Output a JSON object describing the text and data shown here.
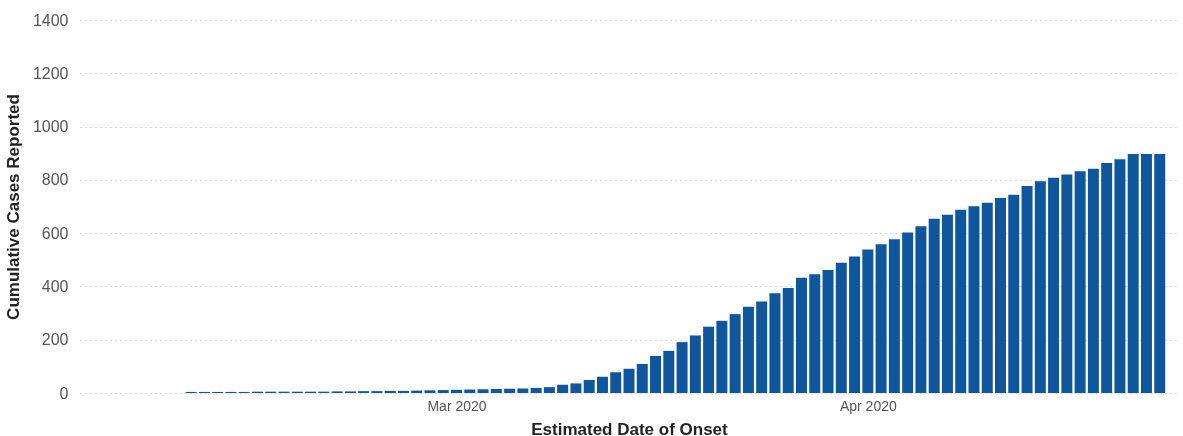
{
  "chart_data": {
    "type": "bar",
    "xlabel": "Estimated Date of Onset",
    "ylabel": "Cumulative Cases Reported",
    "x": [
      "2020-02-10",
      "2020-02-11",
      "2020-02-12",
      "2020-02-13",
      "2020-02-14",
      "2020-02-15",
      "2020-02-16",
      "2020-02-17",
      "2020-02-18",
      "2020-02-19",
      "2020-02-20",
      "2020-02-21",
      "2020-02-22",
      "2020-02-23",
      "2020-02-24",
      "2020-02-25",
      "2020-02-26",
      "2020-02-27",
      "2020-02-28",
      "2020-02-29",
      "2020-03-01",
      "2020-03-02",
      "2020-03-03",
      "2020-03-04",
      "2020-03-05",
      "2020-03-06",
      "2020-03-07",
      "2020-03-08",
      "2020-03-09",
      "2020-03-10",
      "2020-03-11",
      "2020-03-12",
      "2020-03-13",
      "2020-03-14",
      "2020-03-15",
      "2020-03-16",
      "2020-03-17",
      "2020-03-18",
      "2020-03-19",
      "2020-03-20",
      "2020-03-21",
      "2020-03-22",
      "2020-03-23",
      "2020-03-24",
      "2020-03-25",
      "2020-03-26",
      "2020-03-27",
      "2020-03-28",
      "2020-03-29",
      "2020-03-30",
      "2020-03-31",
      "2020-04-01",
      "2020-04-02",
      "2020-04-03",
      "2020-04-04",
      "2020-04-05",
      "2020-04-06",
      "2020-04-07",
      "2020-04-08",
      "2020-04-09",
      "2020-04-10",
      "2020-04-11",
      "2020-04-12",
      "2020-04-13",
      "2020-04-14",
      "2020-04-15",
      "2020-04-16",
      "2020-04-17",
      "2020-04-18",
      "2020-04-19",
      "2020-04-20",
      "2020-04-21",
      "2020-04-22",
      "2020-04-23"
    ],
    "values": [
      4,
      4,
      4,
      4,
      4,
      5,
      5,
      5,
      5,
      5,
      5,
      6,
      6,
      7,
      7,
      8,
      8,
      9,
      10,
      11,
      12,
      13,
      14,
      15,
      16,
      17,
      19,
      22,
      31,
      36,
      49,
      61,
      78,
      91,
      109,
      139,
      158,
      191,
      216,
      249,
      271,
      296,
      324,
      343,
      374,
      394,
      433,
      446,
      462,
      489,
      512,
      539,
      558,
      577,
      602,
      626,
      654,
      669,
      688,
      701,
      714,
      732,
      744,
      777,
      795,
      808,
      820,
      832,
      842,
      863,
      877,
      897,
      897,
      897
    ],
    "color": "#0f569d",
    "xlim": [
      "2020-02-02",
      "2020-04-24"
    ],
    "xticks": [
      {
        "value": "2020-03-01",
        "label": "Mar 2020"
      },
      {
        "value": "2020-04-01",
        "label": "Apr 2020"
      }
    ],
    "ylim": [
      0,
      1400
    ],
    "yticks": [
      0,
      200,
      400,
      600,
      800,
      1000,
      1200,
      1400
    ],
    "grid": "y"
  }
}
